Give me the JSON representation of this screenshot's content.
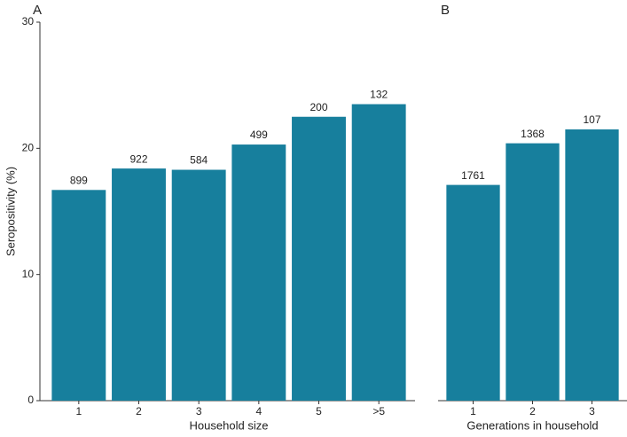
{
  "chart_data": [
    {
      "type": "bar",
      "panel_label": "A",
      "xlabel": "Household size",
      "ylabel": "Seropositivity (%)",
      "categories": [
        "1",
        "2",
        "3",
        "4",
        "5",
        ">5"
      ],
      "values": [
        16.7,
        18.4,
        18.3,
        20.3,
        22.5,
        23.5
      ],
      "counts": [
        899,
        922,
        584,
        499,
        200,
        132
      ],
      "color": "#177f9d",
      "ylim": [
        0,
        30
      ],
      "yticks": [
        0,
        10,
        20,
        30
      ]
    },
    {
      "type": "bar",
      "panel_label": "B",
      "xlabel": "Generations in household",
      "categories": [
        "1",
        "2",
        "3"
      ],
      "values": [
        17.1,
        20.4,
        21.5
      ],
      "counts": [
        1761,
        1368,
        107
      ],
      "color": "#177f9d",
      "ylim": [
        0,
        30
      ]
    }
  ]
}
